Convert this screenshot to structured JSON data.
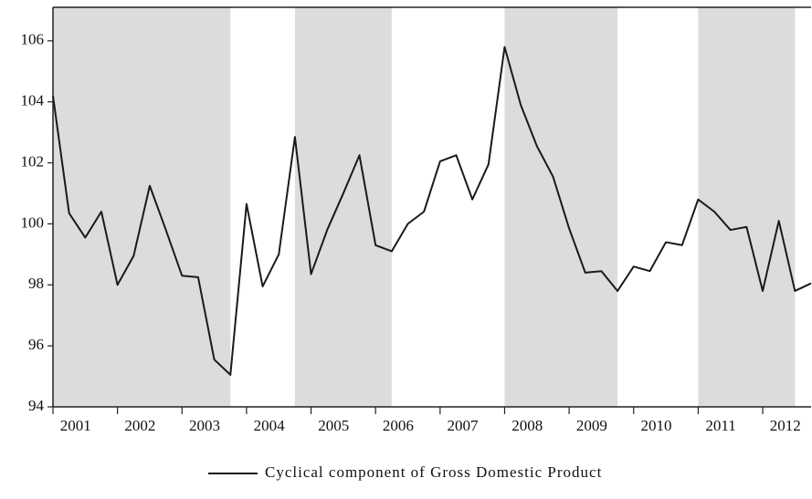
{
  "chart_data": {
    "type": "line",
    "legend": "Cyclical component of Gross Domestic Product",
    "x": [
      2001,
      2001.25,
      2001.5,
      2001.75,
      2002,
      2002.25,
      2002.5,
      2002.75,
      2003,
      2003.25,
      2003.5,
      2003.75,
      2004,
      2004.25,
      2004.5,
      2004.75,
      2005,
      2005.25,
      2005.5,
      2005.75,
      2006,
      2006.25,
      2006.5,
      2006.75,
      2007,
      2007.25,
      2007.5,
      2007.75,
      2008,
      2008.25,
      2008.5,
      2008.75,
      2009,
      2009.25,
      2009.5,
      2009.75,
      2010,
      2010.25,
      2010.5,
      2010.75,
      2011,
      2011.25,
      2011.5,
      2011.75,
      2012,
      2012.25,
      2012.5,
      2012.75
    ],
    "values": [
      104.2,
      100.35,
      99.55,
      100.4,
      98.0,
      98.95,
      101.25,
      99.8,
      98.3,
      98.25,
      95.55,
      95.05,
      100.65,
      97.95,
      99.0,
      102.85,
      98.35,
      99.8,
      101.0,
      102.25,
      99.3,
      99.1,
      100.0,
      100.4,
      102.05,
      102.25,
      100.8,
      101.95,
      105.8,
      103.9,
      102.55,
      101.55,
      99.85,
      98.4,
      98.45,
      97.8,
      98.6,
      98.45,
      99.4,
      99.3,
      100.8,
      100.4,
      99.8,
      99.9,
      97.8,
      100.1,
      97.8,
      98.05
    ],
    "color": "#1a1a1a",
    "shade_color": "#dcdcde",
    "shaded": [
      [
        2001,
        2003.75
      ],
      [
        2004.75,
        2006.25
      ],
      [
        2008,
        2009.75
      ],
      [
        2011,
        2012.5
      ]
    ],
    "xlim": [
      2001,
      2012.75
    ],
    "xticks": [
      {
        "value": 2001,
        "label": "2001"
      },
      {
        "value": 2002,
        "label": "2002"
      },
      {
        "value": 2003,
        "label": "2003"
      },
      {
        "value": 2004,
        "label": "2004"
      },
      {
        "value": 2005,
        "label": "2005"
      },
      {
        "value": 2006,
        "label": "2006"
      },
      {
        "value": 2007,
        "label": "2007"
      },
      {
        "value": 2008,
        "label": "2008"
      },
      {
        "value": 2009,
        "label": "2009"
      },
      {
        "value": 2010,
        "label": "2010"
      },
      {
        "value": 2011,
        "label": "2011"
      },
      {
        "value": 2012,
        "label": "2012"
      }
    ],
    "ylim": [
      94,
      107.1
    ],
    "yticks": [
      94,
      96,
      98,
      100,
      102,
      104,
      106
    ],
    "grid": false
  }
}
